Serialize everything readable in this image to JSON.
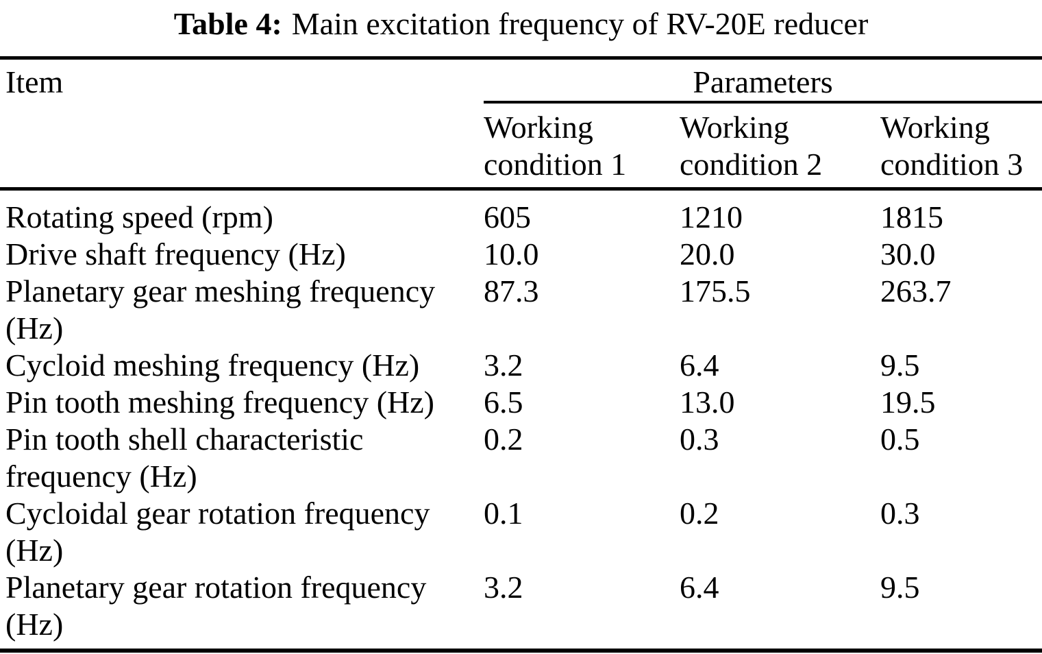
{
  "caption": {
    "label": "Table 4:",
    "text": "Main excitation frequency of RV-20E reducer"
  },
  "table": {
    "item_header": "Item",
    "group_header": "Parameters",
    "columns": [
      "Working condition 1",
      "Working condition 2",
      "Working condition 3"
    ],
    "rows": [
      {
        "item": "Rotating speed (rpm)",
        "values": [
          "605",
          "1210",
          "1815"
        ]
      },
      {
        "item": "Drive shaft frequency (Hz)",
        "values": [
          "10.0",
          "20.0",
          "30.0"
        ]
      },
      {
        "item": "Planetary gear meshing frequency (Hz)",
        "values": [
          "87.3",
          "175.5",
          "263.7"
        ]
      },
      {
        "item": "Cycloid meshing frequency (Hz)",
        "values": [
          "3.2",
          "6.4",
          "9.5"
        ]
      },
      {
        "item": "Pin tooth meshing frequency (Hz)",
        "values": [
          "6.5",
          "13.0",
          "19.5"
        ]
      },
      {
        "item": "Pin tooth shell characteristic frequency (Hz)",
        "values": [
          "0.2",
          "0.3",
          "0.5"
        ]
      },
      {
        "item": "Cycloidal gear rotation frequency (Hz)",
        "values": [
          "0.1",
          "0.2",
          "0.3"
        ]
      },
      {
        "item": "Planetary gear rotation frequency (Hz)",
        "values": [
          "3.2",
          "6.4",
          "9.5"
        ]
      }
    ]
  }
}
